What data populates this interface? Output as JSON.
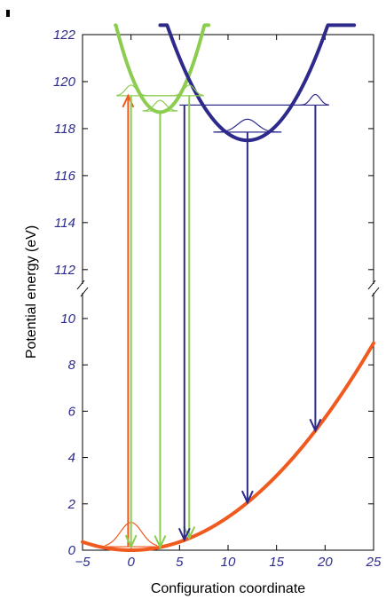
{
  "chart_data": {
    "type": "line",
    "title": "",
    "xlabel": "Configuration coordinate",
    "ylabel": "Potential energy (eV)",
    "xlim": [
      -5,
      25
    ],
    "ylim_lower": [
      0,
      11.3
    ],
    "ylim_upper": [
      111.2,
      122
    ],
    "broken_axis": true,
    "x_ticks": [
      -5,
      0,
      5,
      10,
      15,
      20,
      25
    ],
    "x_tick_labels": [
      "−5",
      "0",
      "5",
      "10",
      "15",
      "20",
      "25"
    ],
    "y_ticks_lower": [
      0,
      2,
      4,
      6,
      8,
      10
    ],
    "y_tick_labels_lower": [
      "0",
      "2",
      "4",
      "6",
      "8",
      "10"
    ],
    "y_ticks_upper": [
      112,
      114,
      116,
      118,
      120,
      122
    ],
    "y_tick_labels_upper": [
      "112",
      "114",
      "116",
      "118",
      "120",
      "122"
    ],
    "colors": {
      "ground": "#f05a1e",
      "green": "#8ccc50",
      "purple": "#2d2a8c",
      "ticks": "#2b2a8c"
    },
    "potentials": [
      {
        "color": "ground",
        "x0": 0,
        "e0": 0.0,
        "k": 0.0143,
        "xrange": [
          -5,
          25
        ]
      },
      {
        "color": "green",
        "x0": 3,
        "e0": 118.7,
        "k": 0.178,
        "xrange": [
          -1.6,
          8.0
        ]
      },
      {
        "color": "purple",
        "x0": 12,
        "e0": 117.5,
        "k": 0.0715,
        "xrange": [
          3.0,
          23.0
        ]
      }
    ],
    "levels": [
      {
        "color": "ground",
        "x": [
          -2.7,
          2.7
        ],
        "e": 0.15,
        "amp": 1.05,
        "peaks": [
          0
        ],
        "width": 1.1
      },
      {
        "color": "green",
        "x": [
          -1.5,
          7.5
        ],
        "e": 119.4,
        "amp": 0.45,
        "peaks": [
          0,
          6
        ],
        "width": 0.55
      },
      {
        "color": "green",
        "x": [
          1.2,
          4.8
        ],
        "e": 118.75,
        "amp": 0.45,
        "peaks": [
          3
        ],
        "width": 0.6
      },
      {
        "color": "purple",
        "x": [
          5.0,
          20.4
        ],
        "e": 119.0,
        "amp": 0.45,
        "peaks": [
          19
        ],
        "width": 0.5
      },
      {
        "color": "purple",
        "x": [
          8.5,
          15.5
        ],
        "e": 117.85,
        "amp": 0.55,
        "peaks": [
          12
        ],
        "width": 1.0
      }
    ],
    "transitions": [
      {
        "color": "ground",
        "x": -0.3,
        "from": 0.15,
        "to": 119.4,
        "arrow": "up"
      },
      {
        "color": "green",
        "x": 0,
        "from": 119.4,
        "to": 0.15,
        "arrow": "down"
      },
      {
        "color": "green",
        "x": 3,
        "from": 118.75,
        "to": 0.13,
        "arrow": "down"
      },
      {
        "color": "green",
        "x": 6,
        "from": 119.4,
        "to": 0.52,
        "arrow": "down"
      },
      {
        "color": "purple",
        "x": 5.5,
        "from": 119.0,
        "to": 0.45,
        "arrow": "down"
      },
      {
        "color": "purple",
        "x": 12,
        "from": 117.85,
        "to": 2.06,
        "arrow": "down"
      },
      {
        "color": "purple",
        "x": 19,
        "from": 119.0,
        "to": 5.16,
        "arrow": "down"
      }
    ]
  }
}
